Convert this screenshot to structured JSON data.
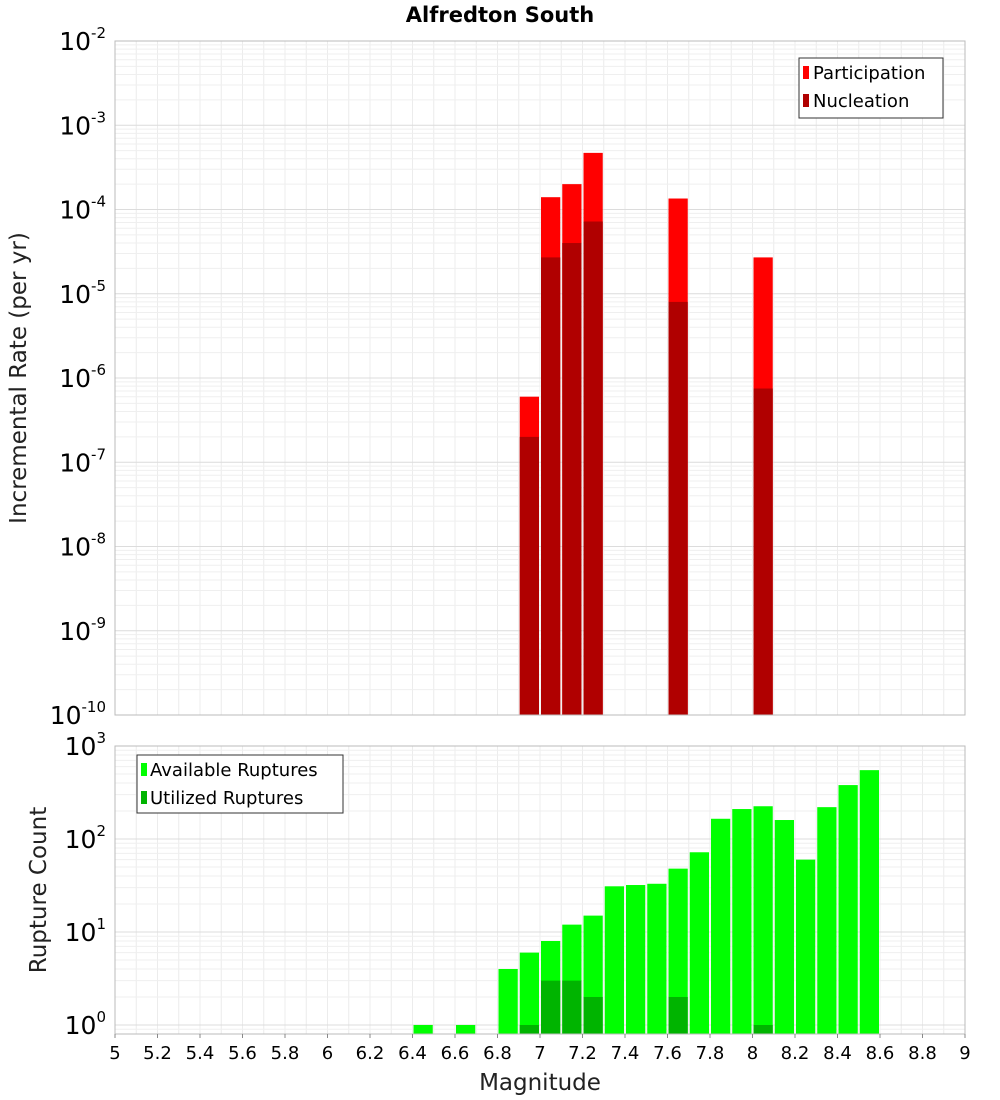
{
  "chart_data": [
    {
      "type": "bar",
      "title": "Alfredton South",
      "xlabel": "",
      "ylabel": "Incremental Rate (per yr)",
      "yscale": "log",
      "ylim": [
        1e-10,
        0.01
      ],
      "xlim": [
        5,
        9
      ],
      "y_ticks": [
        {
          "base": "10",
          "exp": "-2"
        },
        {
          "base": "10",
          "exp": "-3"
        },
        {
          "base": "10",
          "exp": "-4"
        },
        {
          "base": "10",
          "exp": "-5"
        },
        {
          "base": "10",
          "exp": "-6"
        },
        {
          "base": "10",
          "exp": "-7"
        },
        {
          "base": "10",
          "exp": "-8"
        },
        {
          "base": "10",
          "exp": "-9"
        },
        {
          "base": "10",
          "exp": "-10"
        }
      ],
      "legend_position": "top-right",
      "series": [
        {
          "name": "Participation",
          "color": "#ff0000",
          "x": [
            6.95,
            7.05,
            7.15,
            7.25,
            7.65,
            8.05
          ],
          "values": [
            6e-07,
            0.00014,
            0.0002,
            0.00047,
            0.000135,
            2.7e-05
          ]
        },
        {
          "name": "Nucleation",
          "color": "#b00000",
          "x": [
            6.95,
            7.05,
            7.15,
            7.25,
            7.65,
            8.05
          ],
          "values": [
            2e-07,
            2.7e-05,
            4e-05,
            7.2e-05,
            8e-06,
            7.5e-07
          ]
        }
      ]
    },
    {
      "type": "bar",
      "title": "",
      "xlabel": "Magnitude",
      "ylabel": "Rupture Count",
      "yscale": "log",
      "ylim": [
        0.8,
        1000
      ],
      "xlim": [
        5,
        9
      ],
      "y_ticks": [
        {
          "base": "10",
          "exp": "3",
          "value": 1000
        },
        {
          "base": "10",
          "exp": "2",
          "value": 100
        },
        {
          "base": "10",
          "exp": "1",
          "value": 10
        },
        {
          "base": "10",
          "exp": "0",
          "value": 1
        }
      ],
      "x_ticks": [
        "5",
        "5.2",
        "5.4",
        "5.6",
        "5.8",
        "6",
        "6.2",
        "6.4",
        "6.6",
        "6.8",
        "7",
        "7.2",
        "7.4",
        "7.6",
        "7.8",
        "8",
        "8.2",
        "8.4",
        "8.6",
        "8.8",
        "9"
      ],
      "legend_position": "top-left",
      "series": [
        {
          "name": "Available Ruptures",
          "color": "#00ff00",
          "x": [
            6.45,
            6.65,
            6.85,
            6.95,
            7.05,
            7.15,
            7.25,
            7.35,
            7.45,
            7.55,
            7.65,
            7.75,
            7.85,
            7.95,
            8.05,
            8.15,
            8.25,
            8.35,
            8.45,
            8.55
          ],
          "values": [
            1,
            1,
            4,
            6,
            8,
            12,
            15,
            31,
            32,
            33,
            48,
            72,
            165,
            210,
            225,
            160,
            60,
            220,
            380,
            550
          ]
        },
        {
          "name": "Utilized Ruptures",
          "color": "#00b400",
          "x": [
            6.95,
            7.05,
            7.15,
            7.25,
            7.65,
            8.05
          ],
          "values": [
            1,
            3,
            3,
            2,
            2,
            1
          ]
        }
      ]
    }
  ]
}
